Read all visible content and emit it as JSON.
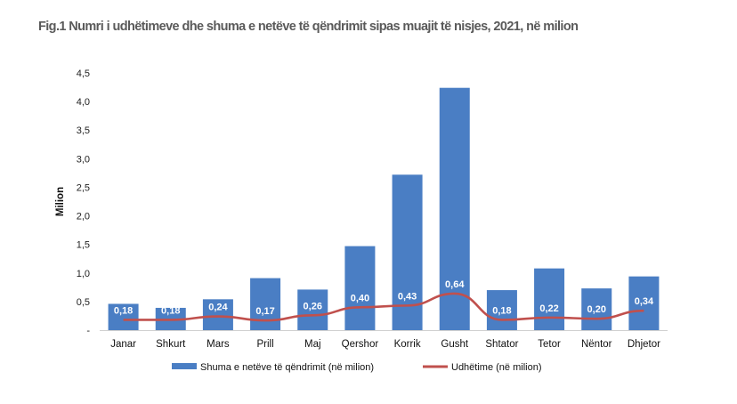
{
  "chart_data": {
    "type": "bar",
    "title": "Fig.1 Numri i udhëtimeve dhe shuma e netëve të qëndrimit sipas muajit të nisjes, 2021, në milion",
    "ylabel": "Milion",
    "xlabel": "",
    "ylim": [
      0,
      4.5
    ],
    "y_ticks": [
      "-",
      "0,5",
      "1,0",
      "1,5",
      "2,0",
      "2,5",
      "3,0",
      "3,5",
      "4,0",
      "4,5"
    ],
    "categories": [
      "Janar",
      "Shkurt",
      "Mars",
      "Prill",
      "Maj",
      "Qershor",
      "Korrik",
      "Gusht",
      "Shtator",
      "Tetor",
      "Nëntor",
      "Dhjetor"
    ],
    "series": [
      {
        "name": "Shuma e netëve të qëndrimit (në milion)",
        "type": "bar",
        "color": "#4a7ec4",
        "values": [
          0.46,
          0.39,
          0.54,
          0.91,
          0.71,
          1.47,
          2.72,
          4.24,
          0.7,
          1.08,
          0.73,
          0.94
        ]
      },
      {
        "name": "Udhëtime (në milion)",
        "type": "line",
        "color": "#c0504d",
        "values": [
          0.18,
          0.18,
          0.24,
          0.17,
          0.26,
          0.4,
          0.43,
          0.64,
          0.18,
          0.22,
          0.2,
          0.34
        ],
        "labels": [
          "0,18",
          "0,18",
          "0,24",
          "0,17",
          "0,26",
          "0,40",
          "0,43",
          "0,64",
          "0,18",
          "0,22",
          "0,20",
          "0,34"
        ]
      }
    ],
    "grid": false,
    "legend_position": "bottom"
  }
}
